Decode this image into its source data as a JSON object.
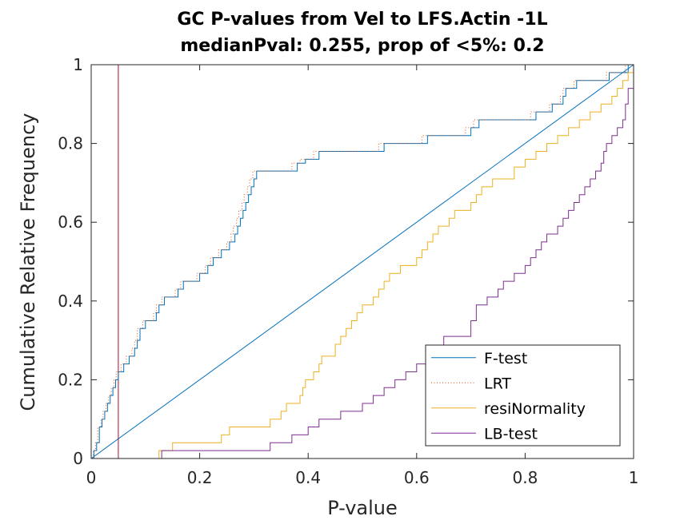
{
  "chart_data": {
    "type": "line",
    "title": "GC P-values from Vel to LFS.Actin -1L",
    "subtitle": "medianPval: 0.255, prop of <5%: 0.2",
    "xlabel": "P-value",
    "ylabel": "Cumulative Relative Frequency",
    "xlim": [
      0,
      1
    ],
    "ylim": [
      0,
      1
    ],
    "xticks": [
      "0",
      "0.2",
      "0.4",
      "0.6",
      "0.8",
      "1"
    ],
    "yticks": [
      "0",
      "0.2",
      "0.4",
      "0.6",
      "0.8",
      "1"
    ],
    "grid": false,
    "legend_position": "bottom-right",
    "threshold_line": {
      "x": 0.05,
      "color": "#A2142F"
    },
    "reference_line": {
      "x": [
        0,
        1
      ],
      "y": [
        0,
        1
      ],
      "color": "#0072BD"
    },
    "series": [
      {
        "name": "F-test",
        "color": "#0072BD",
        "style": "solid",
        "x": [
          0.0,
          0.005,
          0.01,
          0.015,
          0.02,
          0.025,
          0.03,
          0.035,
          0.04,
          0.045,
          0.05,
          0.06,
          0.07,
          0.08,
          0.085,
          0.09,
          0.1,
          0.12,
          0.125,
          0.135,
          0.16,
          0.17,
          0.2,
          0.215,
          0.225,
          0.24,
          0.255,
          0.265,
          0.27,
          0.275,
          0.28,
          0.285,
          0.29,
          0.295,
          0.3,
          0.305,
          0.31,
          0.33,
          0.38,
          0.395,
          0.42,
          0.465,
          0.54,
          0.6,
          0.62,
          0.66,
          0.7,
          0.715,
          0.72,
          0.78,
          0.81,
          0.82,
          0.84,
          0.85,
          0.87,
          0.875,
          0.895,
          0.9,
          0.92,
          0.94,
          0.955,
          0.97,
          0.98,
          0.99,
          1.0
        ],
        "y": [
          0.0,
          0.02,
          0.04,
          0.08,
          0.1,
          0.12,
          0.14,
          0.16,
          0.18,
          0.2,
          0.22,
          0.24,
          0.26,
          0.28,
          0.3,
          0.33,
          0.35,
          0.37,
          0.39,
          0.41,
          0.43,
          0.45,
          0.47,
          0.49,
          0.51,
          0.53,
          0.55,
          0.57,
          0.59,
          0.61,
          0.63,
          0.65,
          0.67,
          0.69,
          0.71,
          0.73,
          0.73,
          0.73,
          0.75,
          0.76,
          0.78,
          0.78,
          0.8,
          0.8,
          0.82,
          0.82,
          0.84,
          0.86,
          0.86,
          0.86,
          0.86,
          0.88,
          0.88,
          0.9,
          0.92,
          0.94,
          0.96,
          0.96,
          0.96,
          0.96,
          0.98,
          0.98,
          0.98,
          1.0,
          1.0
        ]
      },
      {
        "name": "LRT",
        "color": "#D95319",
        "style": "dotted",
        "x": [
          0.0,
          0.004,
          0.008,
          0.012,
          0.018,
          0.022,
          0.027,
          0.032,
          0.037,
          0.042,
          0.046,
          0.055,
          0.065,
          0.075,
          0.08,
          0.085,
          0.095,
          0.115,
          0.12,
          0.13,
          0.155,
          0.165,
          0.195,
          0.21,
          0.22,
          0.235,
          0.25,
          0.258,
          0.262,
          0.268,
          0.272,
          0.278,
          0.282,
          0.288,
          0.292,
          0.298,
          0.305,
          0.325,
          0.37,
          0.385,
          0.41,
          0.455,
          0.53,
          0.59,
          0.61,
          0.65,
          0.69,
          0.705,
          0.71,
          0.77,
          0.8,
          0.81,
          0.83,
          0.845,
          0.865,
          0.87,
          0.89,
          0.895,
          0.915,
          0.935,
          0.95,
          0.965,
          0.975,
          0.985,
          1.0
        ],
        "y": [
          0.0,
          0.02,
          0.04,
          0.08,
          0.1,
          0.12,
          0.14,
          0.16,
          0.18,
          0.2,
          0.22,
          0.24,
          0.26,
          0.28,
          0.3,
          0.33,
          0.35,
          0.37,
          0.39,
          0.41,
          0.43,
          0.45,
          0.47,
          0.49,
          0.51,
          0.53,
          0.55,
          0.57,
          0.59,
          0.61,
          0.63,
          0.65,
          0.67,
          0.69,
          0.71,
          0.73,
          0.73,
          0.73,
          0.75,
          0.76,
          0.78,
          0.78,
          0.8,
          0.8,
          0.82,
          0.82,
          0.84,
          0.86,
          0.86,
          0.86,
          0.86,
          0.88,
          0.88,
          0.9,
          0.92,
          0.94,
          0.96,
          0.96,
          0.96,
          0.96,
          0.98,
          0.98,
          0.98,
          1.0,
          1.0
        ]
      },
      {
        "name": "resiNormality",
        "color": "#EDB120",
        "style": "solid",
        "x": [
          0.12,
          0.125,
          0.145,
          0.15,
          0.23,
          0.24,
          0.25,
          0.255,
          0.32,
          0.33,
          0.34,
          0.35,
          0.36,
          0.38,
          0.385,
          0.39,
          0.395,
          0.41,
          0.42,
          0.425,
          0.44,
          0.45,
          0.46,
          0.47,
          0.48,
          0.49,
          0.5,
          0.52,
          0.53,
          0.54,
          0.55,
          0.57,
          0.6,
          0.61,
          0.62,
          0.63,
          0.64,
          0.66,
          0.67,
          0.7,
          0.71,
          0.72,
          0.74,
          0.78,
          0.8,
          0.82,
          0.84,
          0.86,
          0.88,
          0.9,
          0.92,
          0.94,
          0.96,
          0.97,
          0.98,
          0.99,
          1.0
        ],
        "y": [
          0.0,
          0.02,
          0.02,
          0.04,
          0.04,
          0.06,
          0.06,
          0.08,
          0.08,
          0.1,
          0.1,
          0.12,
          0.14,
          0.14,
          0.16,
          0.18,
          0.2,
          0.22,
          0.24,
          0.26,
          0.26,
          0.29,
          0.31,
          0.33,
          0.35,
          0.37,
          0.39,
          0.41,
          0.43,
          0.45,
          0.47,
          0.49,
          0.51,
          0.53,
          0.55,
          0.57,
          0.59,
          0.61,
          0.63,
          0.65,
          0.67,
          0.69,
          0.71,
          0.74,
          0.76,
          0.78,
          0.8,
          0.82,
          0.84,
          0.86,
          0.88,
          0.9,
          0.92,
          0.94,
          0.96,
          0.98,
          1.0
        ]
      },
      {
        "name": "LB-test",
        "color": "#7E2F8E",
        "style": "solid",
        "x": [
          0.125,
          0.13,
          0.32,
          0.33,
          0.37,
          0.4,
          0.42,
          0.46,
          0.5,
          0.52,
          0.54,
          0.56,
          0.58,
          0.6,
          0.62,
          0.65,
          0.7,
          0.71,
          0.73,
          0.75,
          0.76,
          0.78,
          0.8,
          0.81,
          0.82,
          0.83,
          0.84,
          0.86,
          0.87,
          0.88,
          0.89,
          0.9,
          0.91,
          0.92,
          0.93,
          0.94,
          0.945,
          0.95,
          0.96,
          0.97,
          0.98,
          0.985,
          0.99,
          1.0
        ],
        "y": [
          0.0,
          0.02,
          0.02,
          0.04,
          0.06,
          0.08,
          0.1,
          0.12,
          0.14,
          0.16,
          0.18,
          0.2,
          0.22,
          0.24,
          0.27,
          0.31,
          0.35,
          0.39,
          0.41,
          0.43,
          0.45,
          0.47,
          0.49,
          0.51,
          0.53,
          0.55,
          0.57,
          0.59,
          0.61,
          0.63,
          0.65,
          0.67,
          0.69,
          0.71,
          0.73,
          0.75,
          0.78,
          0.8,
          0.82,
          0.84,
          0.86,
          0.9,
          0.94,
          1.0
        ]
      }
    ]
  }
}
